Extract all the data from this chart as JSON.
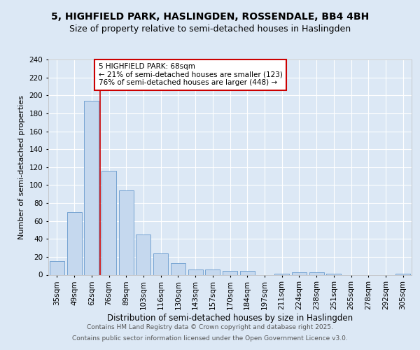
{
  "title1": "5, HIGHFIELD PARK, HASLINGDEN, ROSSENDALE, BB4 4BH",
  "title2": "Size of property relative to semi-detached houses in Haslingden",
  "xlabel": "Distribution of semi-detached houses by size in Haslingden",
  "ylabel": "Number of semi-detached properties",
  "categories": [
    "35sqm",
    "49sqm",
    "62sqm",
    "76sqm",
    "89sqm",
    "103sqm",
    "116sqm",
    "130sqm",
    "143sqm",
    "157sqm",
    "170sqm",
    "184sqm",
    "197sqm",
    "211sqm",
    "224sqm",
    "238sqm",
    "251sqm",
    "265sqm",
    "278sqm",
    "292sqm",
    "305sqm"
  ],
  "values": [
    15,
    70,
    194,
    116,
    94,
    45,
    24,
    13,
    6,
    6,
    4,
    4,
    0,
    1,
    3,
    3,
    1,
    0,
    0,
    0,
    1
  ],
  "bar_color": "#c5d8ee",
  "bar_edge_color": "#6699cc",
  "red_line_index": 2,
  "annotation_text": "5 HIGHFIELD PARK: 68sqm\n← 21% of semi-detached houses are smaller (123)\n76% of semi-detached houses are larger (448) →",
  "annotation_box_facecolor": "#ffffff",
  "annotation_box_edgecolor": "#cc0000",
  "red_line_color": "#cc0000",
  "background_color": "#dce8f5",
  "plot_background_color": "#dce8f5",
  "grid_color": "#ffffff",
  "ylim": [
    0,
    240
  ],
  "yticks": [
    0,
    20,
    40,
    60,
    80,
    100,
    120,
    140,
    160,
    180,
    200,
    220,
    240
  ],
  "footer1": "Contains HM Land Registry data © Crown copyright and database right 2025.",
  "footer2": "Contains public sector information licensed under the Open Government Licence v3.0.",
  "title1_fontsize": 10,
  "title2_fontsize": 9,
  "xlabel_fontsize": 8.5,
  "ylabel_fontsize": 8,
  "tick_fontsize": 7.5,
  "annotation_fontsize": 7.5,
  "footer_fontsize": 6.5
}
